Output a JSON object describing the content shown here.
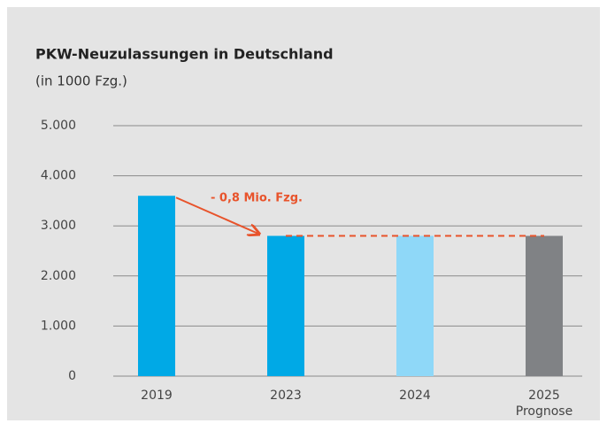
{
  "chart_data": {
    "type": "bar",
    "title": "PKW-Neuzulassungen in Deutschland",
    "subtitle": "(in 1000 Fzg.)",
    "categories": [
      "2019",
      "2023",
      "2024",
      "2025"
    ],
    "category_sublabels": [
      null,
      null,
      null,
      "Prognose"
    ],
    "values": [
      3600,
      2800,
      2800,
      2800
    ],
    "colors": [
      "#00a9e6",
      "#00a9e6",
      "#8fd8f8",
      "#808285"
    ],
    "ylim": [
      0,
      5000
    ],
    "yticks": [
      0,
      {
        "value": 1000,
        "label": "1.000"
      },
      {
        "value": 2000,
        "label": "2.000"
      },
      {
        "value": 3000,
        "label": "3.000"
      },
      {
        "value": 4000,
        "label": "4.000"
      },
      {
        "value": 5000,
        "label": "5.000"
      }
    ],
    "grid": true,
    "annotations": [
      {
        "text": "- 0,8 Mio. Fzg.",
        "color": "#e8532b"
      }
    ]
  }
}
